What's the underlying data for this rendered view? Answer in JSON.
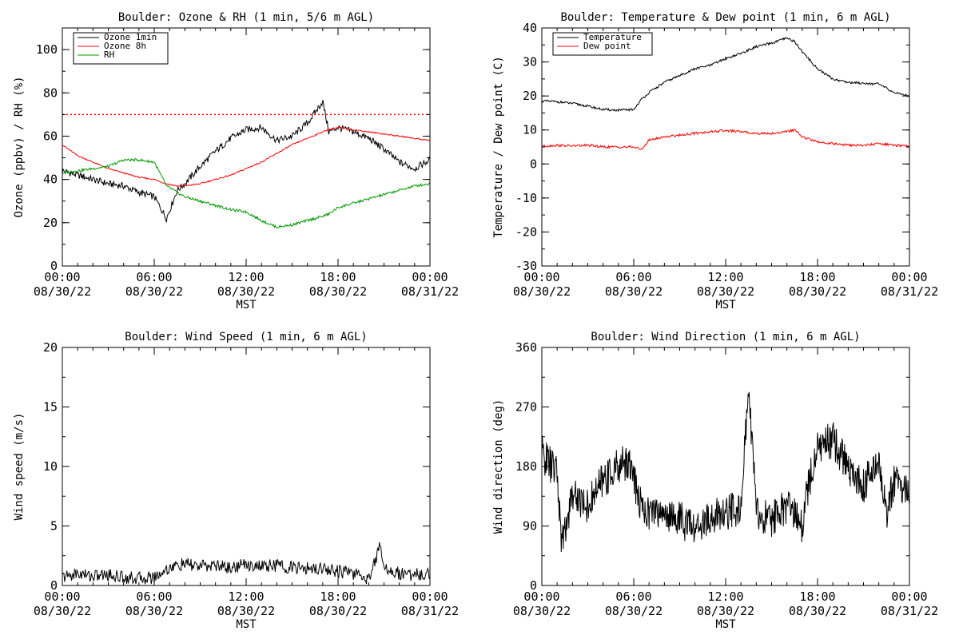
{
  "chart_data": [
    {
      "type": "line",
      "title": "Boulder: Ozone & RH (1 min, 5/6 m AGL)",
      "xlabel": "MST",
      "ylabel": "Ozone (ppbv) / RH (%)",
      "xlim": [
        "00:00 08/30/22",
        "00:00 08/31/22"
      ],
      "ylim": [
        0,
        110
      ],
      "yticks": [
        0,
        20,
        40,
        60,
        80,
        100
      ],
      "xtick_labels": [
        [
          "00:00",
          "08/30/22"
        ],
        [
          "06:00",
          "08/30/22"
        ],
        [
          "12:00",
          "08/30/22"
        ],
        [
          "18:00",
          "08/30/22"
        ],
        [
          "00:00",
          "08/31/22"
        ]
      ],
      "legend_position": "top-left",
      "reference_line": {
        "y": 70,
        "color": "#ff0000",
        "style": "dotted"
      },
      "x_hours": [
        0,
        1,
        2,
        3,
        4,
        5,
        6,
        6.8,
        7.5,
        8,
        9,
        10,
        11,
        12,
        13,
        14,
        15,
        16,
        17,
        17.4,
        18,
        19,
        20,
        21,
        22,
        23,
        24
      ],
      "series": [
        {
          "name": "Ozone 1min",
          "color": "#000000",
          "values": [
            44,
            42,
            40,
            38,
            37,
            34,
            32,
            22,
            35,
            38,
            46,
            53,
            59,
            63,
            64,
            58,
            60,
            66,
            76,
            62,
            64,
            62,
            59,
            54,
            48,
            45,
            49
          ]
        },
        {
          "name": "Ozone 8h",
          "color": "#ff0000",
          "values": [
            56,
            51,
            48,
            45,
            43,
            41,
            40,
            38,
            37,
            37,
            38,
            40,
            42,
            45,
            48,
            52,
            56,
            59,
            62,
            63,
            64,
            63,
            62,
            61,
            60,
            59,
            58
          ]
        },
        {
          "name": "RH",
          "color": "#009900",
          "values": [
            43,
            44,
            45,
            46,
            49,
            49,
            48,
            37,
            34,
            32,
            30,
            28,
            26,
            25,
            21,
            18,
            19,
            21,
            23,
            24,
            27,
            29,
            31,
            33,
            35,
            37,
            38
          ]
        }
      ]
    },
    {
      "type": "line",
      "title": "Boulder: Temperature & Dew point (1 min, 6 m AGL)",
      "xlabel": "MST",
      "ylabel": "Temperature / Dew point (C)",
      "xlim": [
        "00:00 08/30/22",
        "00:00 08/31/22"
      ],
      "ylim": [
        -30,
        40
      ],
      "yticks": [
        -30,
        -20,
        -10,
        0,
        10,
        20,
        30,
        40
      ],
      "xtick_labels": [
        [
          "00:00",
          "08/30/22"
        ],
        [
          "06:00",
          "08/30/22"
        ],
        [
          "12:00",
          "08/30/22"
        ],
        [
          "18:00",
          "08/30/22"
        ],
        [
          "00:00",
          "08/31/22"
        ]
      ],
      "legend_position": "top-left",
      "x_hours": [
        0,
        1,
        2,
        3,
        4,
        5,
        6,
        6.5,
        7,
        8,
        9,
        10,
        11,
        12,
        13,
        14,
        15,
        16,
        16.5,
        17,
        18,
        19,
        20,
        21,
        22,
        23,
        24
      ],
      "series": [
        {
          "name": "Temperature",
          "color": "#000000",
          "values": [
            18.5,
            18.3,
            17.8,
            17,
            16,
            15.8,
            16,
            19,
            21,
            24,
            26,
            28,
            29,
            31,
            32.5,
            34.5,
            35.5,
            37,
            36,
            33,
            28,
            25,
            24,
            23.8,
            23.5,
            21,
            20
          ]
        },
        {
          "name": "Dew point",
          "color": "#ff0000",
          "values": [
            5.2,
            5.5,
            5.3,
            5.5,
            5,
            5,
            5,
            4.2,
            7,
            8,
            8.5,
            9,
            9.5,
            9.8,
            9.5,
            9,
            9,
            9.5,
            10,
            8,
            6.5,
            6,
            5.5,
            5.5,
            6,
            5.5,
            5.2
          ]
        }
      ]
    },
    {
      "type": "line",
      "title": "Boulder: Wind Speed (1 min, 6 m AGL)",
      "xlabel": "MST",
      "ylabel": "Wind speed (m/s)",
      "xlim": [
        "00:00 08/30/22",
        "00:00 08/31/22"
      ],
      "ylim": [
        0,
        20
      ],
      "yticks": [
        0,
        5,
        10,
        15,
        20
      ],
      "xtick_labels": [
        [
          "00:00",
          "08/30/22"
        ],
        [
          "06:00",
          "08/30/22"
        ],
        [
          "12:00",
          "08/30/22"
        ],
        [
          "18:00",
          "08/30/22"
        ],
        [
          "00:00",
          "08/31/22"
        ]
      ],
      "x_hours": [
        0,
        1,
        2,
        3,
        4,
        5,
        6,
        7,
        8,
        9,
        10,
        11,
        12,
        13,
        14,
        15,
        16,
        17,
        18,
        19,
        20,
        20.8,
        21,
        22,
        23,
        24
      ],
      "series": [
        {
          "name": "",
          "color": "#000000",
          "values": [
            0.7,
            1.0,
            0.8,
            0.9,
            0.7,
            0.6,
            0.7,
            1.5,
            1.8,
            1.6,
            1.7,
            1.5,
            1.8,
            1.6,
            1.7,
            1.5,
            1.4,
            1.5,
            1.2,
            1.0,
            0.6,
            3.5,
            1.5,
            1.0,
            0.9,
            1.0
          ]
        }
      ]
    },
    {
      "type": "line",
      "title": "Boulder: Wind Direction (1 min, 6 m AGL)",
      "xlabel": "MST",
      "ylabel": "Wind direction (deg)",
      "xlim": [
        "00:00 08/30/22",
        "00:00 08/31/22"
      ],
      "ylim": [
        0,
        360
      ],
      "yticks": [
        0,
        90,
        180,
        270,
        360
      ],
      "xtick_labels": [
        [
          "00:00",
          "08/30/22"
        ],
        [
          "06:00",
          "08/30/22"
        ],
        [
          "12:00",
          "08/30/22"
        ],
        [
          "18:00",
          "08/30/22"
        ],
        [
          "00:00",
          "08/31/22"
        ]
      ],
      "x_hours": [
        0,
        1,
        1.3,
        2,
        3,
        4,
        5,
        5.7,
        6,
        6.5,
        7,
        8,
        9,
        10,
        11,
        12,
        13,
        13.5,
        14,
        15,
        16,
        17,
        17.2,
        18,
        19,
        20,
        21,
        22,
        22.5,
        23,
        24
      ],
      "series": [
        {
          "name": "",
          "color": "#000000",
          "values": [
            200,
            170,
            60,
            140,
            120,
            160,
            180,
            190,
            160,
            120,
            110,
            110,
            100,
            85,
            100,
            110,
            120,
            300,
            110,
            100,
            120,
            90,
            130,
            210,
            220,
            180,
            150,
            190,
            110,
            160,
            140
          ]
        }
      ]
    }
  ]
}
